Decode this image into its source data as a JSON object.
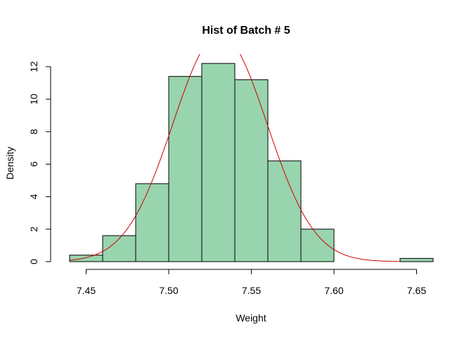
{
  "chart_data": {
    "type": "bar",
    "title": "Hist of Batch # 5",
    "xlabel": "Weight",
    "ylabel": "Density",
    "bins": [
      {
        "from": 7.44,
        "to": 7.46,
        "density": 0.4
      },
      {
        "from": 7.46,
        "to": 7.48,
        "density": 1.6
      },
      {
        "from": 7.48,
        "to": 7.5,
        "density": 4.8
      },
      {
        "from": 7.5,
        "to": 7.52,
        "density": 11.4
      },
      {
        "from": 7.52,
        "to": 7.54,
        "density": 12.2
      },
      {
        "from": 7.54,
        "to": 7.56,
        "density": 11.2
      },
      {
        "from": 7.56,
        "to": 7.58,
        "density": 6.2
      },
      {
        "from": 7.58,
        "to": 7.6,
        "density": 2.0
      },
      {
        "from": 7.6,
        "to": 7.62,
        "density": 0
      },
      {
        "from": 7.62,
        "to": 7.64,
        "density": 0
      },
      {
        "from": 7.64,
        "to": 7.66,
        "density": 0.2
      }
    ],
    "density_curve": {
      "type": "normal",
      "mean": 7.531,
      "sd": 0.0285,
      "color": "#cc0000"
    },
    "xticks": [
      "7.45",
      "7.50",
      "7.55",
      "7.60",
      "7.65"
    ],
    "yticks": [
      "0",
      "2",
      "4",
      "6",
      "8",
      "10",
      "12"
    ],
    "xlim": [
      7.44,
      7.66
    ],
    "ylim": [
      0,
      12.6
    ],
    "bar_fill": "#98d4ae",
    "bar_stroke": "#000000",
    "grid": false
  }
}
